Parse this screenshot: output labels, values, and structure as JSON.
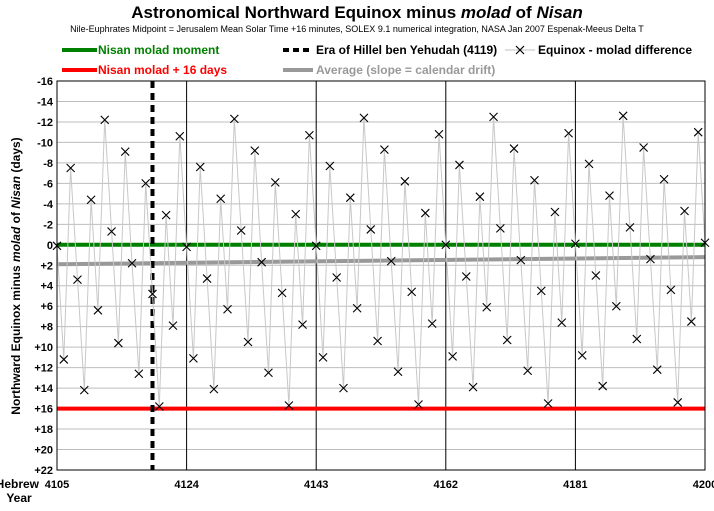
{
  "chart_data": {
    "type": "line",
    "title": "Astronomical Northward Equinox minus molad of Nisan",
    "title_parts": {
      "pre": "Astronomical Northward Equinox minus ",
      "em1": "molad",
      "mid": " of ",
      "em2": "Nisan"
    },
    "subtitle": "Nile-Euphrates Midpoint = Jerusalem Mean Solar Time +16 minutes, SOLEX 9.1 numerical integration, NASA Jan 2007 Espenak-Meeus Delta T",
    "ylabel": "Northward Equinox minus molad of Nisan (days)",
    "ylabel_parts": {
      "pre": "Northward Equinox minus ",
      "em1": "molad",
      "mid": " of ",
      "em2": "Nisan",
      "post": " (days)"
    },
    "xlabel": "Hebrew Year",
    "xlabel_lines": [
      "Hebrew",
      "Year"
    ],
    "xlim": [
      4105,
      4200
    ],
    "ylim": [
      -16,
      22
    ],
    "y_reversed": true,
    "y_ticks": [
      -16,
      -14,
      -12,
      -10,
      -8,
      -6,
      -4,
      -2,
      0,
      2,
      4,
      6,
      8,
      10,
      12,
      14,
      16,
      18,
      20,
      22
    ],
    "y_tick_labels": [
      "-16",
      "-14",
      "-12",
      "-10",
      "-8",
      "-6",
      "-4",
      "-2",
      "0",
      "+2",
      "+4",
      "+6",
      "+8",
      "+10",
      "+12",
      "+14",
      "+16",
      "+18",
      "+20",
      "+22"
    ],
    "x_ticks": [
      4105,
      4124,
      4143,
      4162,
      4181,
      4200
    ],
    "x_tick_labels": [
      "4105",
      "4124",
      "4143",
      "4162",
      "4181",
      "4200"
    ],
    "grid": "horizontal",
    "legend": [
      {
        "label": "Nisan molad moment",
        "color": "#008000",
        "style": "solid"
      },
      {
        "label": "Nisan molad + 16 days",
        "color": "#ff0000",
        "style": "solid"
      },
      {
        "label": "Era of Hillel ben Yehudah (4119)",
        "color": "#000000",
        "style": "dashed"
      },
      {
        "label": "Average (slope = calendar drift)",
        "color": "#999999",
        "style": "solid"
      },
      {
        "label": "Equinox - molad difference",
        "color": "#c0c0c0",
        "style": "marker-x"
      }
    ],
    "reference_lines": {
      "molad_moment_y": 0,
      "molad_plus16_y": 16,
      "hillel_era_x": 4119,
      "average_line": {
        "x": [
          4105,
          4200
        ],
        "y": [
          1.9,
          1.2
        ]
      }
    },
    "series": [
      {
        "name": "Equinox - molad difference",
        "x": [
          4105,
          4106,
          4107,
          4108,
          4109,
          4110,
          4111,
          4112,
          4113,
          4114,
          4115,
          4116,
          4117,
          4118,
          4119,
          4120,
          4121,
          4122,
          4123,
          4124,
          4125,
          4126,
          4127,
          4128,
          4129,
          4130,
          4131,
          4132,
          4133,
          4134,
          4135,
          4136,
          4137,
          4138,
          4139,
          4140,
          4141,
          4142,
          4143,
          4144,
          4145,
          4146,
          4147,
          4148,
          4149,
          4150,
          4151,
          4152,
          4153,
          4154,
          4155,
          4156,
          4157,
          4158,
          4159,
          4160,
          4161,
          4162,
          4163,
          4164,
          4165,
          4166,
          4167,
          4168,
          4169,
          4170,
          4171,
          4172,
          4173,
          4174,
          4175,
          4176,
          4177,
          4178,
          4179,
          4180,
          4181,
          4182,
          4183,
          4184,
          4185,
          4186,
          4187,
          4188,
          4189,
          4190,
          4191,
          4192,
          4193,
          4194,
          4195,
          4196,
          4197,
          4198,
          4199,
          4200
        ],
        "y": [
          0.1,
          11.2,
          -7.5,
          3.4,
          14.2,
          -4.4,
          6.4,
          -12.2,
          -1.3,
          9.6,
          -9.1,
          1.8,
          12.6,
          -6.0,
          4.8,
          15.8,
          -2.9,
          7.9,
          -10.6,
          0.2,
          11.1,
          -7.6,
          3.3,
          14.1,
          -4.5,
          6.3,
          -12.3,
          -1.4,
          9.5,
          -9.2,
          1.7,
          12.5,
          -6.1,
          4.7,
          15.7,
          -3.0,
          7.8,
          -10.7,
          0.1,
          11.0,
          -7.7,
          3.2,
          14.0,
          -4.6,
          6.2,
          -12.4,
          -1.5,
          9.4,
          -9.3,
          1.6,
          12.4,
          -6.2,
          4.6,
          15.6,
          -3.1,
          7.7,
          -10.8,
          0.0,
          10.9,
          -7.8,
          3.1,
          13.9,
          -4.7,
          6.1,
          -12.5,
          -1.6,
          9.3,
          -9.4,
          1.5,
          12.3,
          -6.3,
          4.5,
          15.5,
          -3.2,
          7.6,
          -10.9,
          -0.1,
          10.8,
          -7.9,
          3.0,
          13.8,
          -4.8,
          6.0,
          -12.6,
          -1.7,
          9.2,
          -9.5,
          1.4,
          12.2,
          -6.4,
          4.4,
          15.4,
          -3.3,
          7.5,
          -11.0,
          -0.2
        ]
      }
    ]
  }
}
